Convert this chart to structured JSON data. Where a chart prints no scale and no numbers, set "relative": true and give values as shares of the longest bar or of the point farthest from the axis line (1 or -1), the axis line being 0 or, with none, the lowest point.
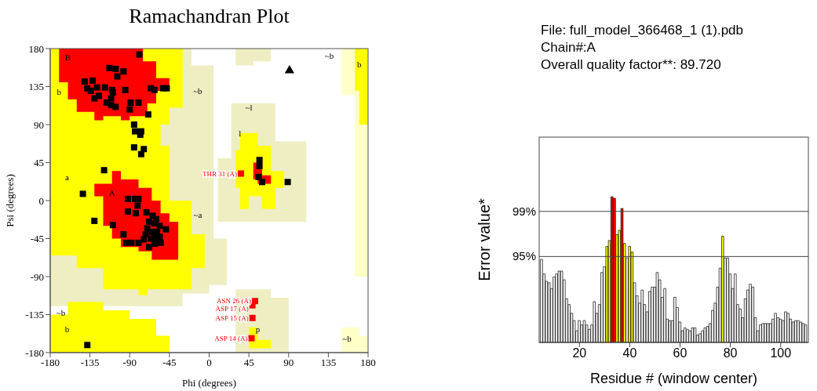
{
  "chart_data": [
    {
      "type": "scatter",
      "title": "Ramachandran Plot",
      "xlabel": "Phi (degrees)",
      "ylabel": "Psi (degrees)",
      "xlim": [
        -180,
        180
      ],
      "ylim": [
        -180,
        180
      ],
      "xticks": [
        -180,
        -135,
        -90,
        -45,
        0,
        45,
        90,
        135,
        180
      ],
      "yticks": [
        -180,
        -135,
        -90,
        -45,
        0,
        45,
        90,
        135,
        180
      ],
      "series": [
        {
          "color": "#000000",
          "marker": "square",
          "x": [
            -79,
            -113,
            -106,
            -97,
            -104,
            -141,
            -132,
            -138,
            -134,
            -127,
            -118,
            -110,
            -109,
            -95,
            -66,
            -62,
            -52,
            -48,
            -130,
            -125,
            -111,
            -116,
            -111,
            -106,
            -89,
            -80,
            -90,
            -69,
            -85,
            -84,
            -77,
            -78,
            -85,
            -74,
            -77,
            -119,
            57,
            57,
            56,
            60,
            89,
            -143,
            -130,
            -109,
            -97,
            -94,
            -88,
            -80,
            -68,
            -92,
            -84,
            -80,
            -81,
            -92,
            -83,
            -71,
            -64,
            -60,
            -68,
            -62,
            -56,
            -49,
            -70,
            -65,
            -59,
            -72,
            -62,
            -56,
            -66,
            -60,
            -55,
            -74,
            -62,
            -138
          ],
          "values": [
            173,
            157,
            156,
            153,
            147,
            141,
            142,
            133,
            130,
            134,
            134,
            131,
            128,
            131,
            133,
            131,
            133,
            133,
            121,
            124,
            121,
            116,
            113,
            111,
            116,
            116,
            108,
            102,
            90,
            82,
            82,
            78,
            63,
            61,
            55,
            36,
            48,
            41,
            28,
            22,
            22,
            8,
            -24,
            -29,
            -40,
            -50,
            -50,
            -50,
            -55,
            2,
            2,
            2,
            -6,
            -13,
            -15,
            -14,
            -18,
            -22,
            -25,
            -27,
            -30,
            -34,
            -33,
            -37,
            -37,
            -40,
            -41,
            -43,
            -45,
            -48,
            -50,
            -46,
            -51,
            -171
          ]
        },
        {
          "color": "#000000",
          "marker": "triangle",
          "x": [
            91
          ],
          "values": [
            154
          ]
        },
        {
          "color": "#ff0000",
          "marker": "square",
          "x": [
            36,
            52,
            49,
            49,
            48
          ],
          "values": [
            32,
            -119,
            -124,
            -139,
            -163
          ]
        }
      ],
      "annotations": [
        {
          "text": "THR 31 (A)",
          "x": 36,
          "y": 32
        },
        {
          "text": "ASN 26 (A)",
          "x": 52,
          "y": -119
        },
        {
          "text": "ASP 17 (A)",
          "x": 49,
          "y": -124
        },
        {
          "text": "ASP 15 (A)",
          "x": 49,
          "y": -139
        },
        {
          "text": "ASP 14 (A)",
          "x": 48,
          "y": -163
        },
        "B",
        "b",
        "~b",
        "~l",
        "l",
        "a",
        "~b",
        "b",
        "A",
        "~a",
        "~b",
        "b",
        "p",
        "~b"
      ]
    },
    {
      "type": "bar",
      "xlabel": "Residue # (window center)",
      "ylabel": "Error value*",
      "xlim": [
        4,
        111
      ],
      "xticks": [
        20,
        40,
        60,
        80,
        100
      ],
      "relative": true,
      "ref_lines": [
        {
          "axis": "y",
          "value": 0.59,
          "color": "#444444"
        },
        {
          "axis": "y",
          "value": 0.9,
          "color": "#444444"
        }
      ],
      "annotations": [
        "File: full_model_366468_1 (1).pdb",
        "Chain#:A",
        "Overall quality factor**: 89.720",
        "95%",
        "99%"
      ],
      "x": [
        5,
        6,
        7,
        8,
        9,
        10,
        11,
        12,
        13,
        14,
        15,
        16,
        17,
        18,
        19,
        20,
        21,
        22,
        23,
        24,
        25,
        26,
        27,
        28,
        29,
        30,
        31,
        32,
        33,
        34,
        35,
        36,
        37,
        38,
        39,
        40,
        41,
        42,
        43,
        44,
        45,
        46,
        47,
        48,
        49,
        50,
        51,
        52,
        53,
        54,
        55,
        56,
        57,
        58,
        59,
        60,
        61,
        62,
        63,
        64,
        65,
        66,
        67,
        68,
        69,
        70,
        71,
        72,
        73,
        74,
        75,
        76,
        77,
        78,
        79,
        80,
        81,
        82,
        83,
        84,
        85,
        86,
        87,
        88,
        89,
        90,
        91,
        92,
        93,
        94,
        95,
        96,
        97,
        98,
        99,
        100,
        101,
        102,
        103,
        104,
        105,
        106,
        107,
        108,
        109,
        110
      ],
      "values": [
        0.57,
        0.47,
        0.42,
        0.41,
        0.37,
        0.45,
        0.47,
        0.49,
        0.49,
        0.43,
        0.3,
        0.26,
        0.2,
        0.15,
        0.08,
        0.15,
        0.12,
        0.15,
        0.12,
        0.09,
        0.12,
        0.28,
        0.2,
        0.26,
        0.48,
        0.52,
        0.66,
        0.7,
        1,
        0.99,
        0.74,
        0.77,
        0.92,
        0.68,
        0.58,
        0.66,
        0.62,
        0.41,
        0.32,
        0.27,
        0.36,
        0.26,
        0.21,
        0.35,
        0.38,
        0.38,
        0.48,
        0.43,
        0.31,
        0.37,
        0.16,
        0.15,
        0.15,
        0.31,
        0.24,
        0.14,
        0.08,
        0.1,
        0.09,
        0.08,
        0.1,
        0.1,
        0.05,
        0.06,
        0.08,
        0.1,
        0.11,
        0.13,
        0.22,
        0.27,
        0.38,
        0.51,
        0.73,
        0.58,
        0.58,
        0.47,
        0.37,
        0.47,
        0.26,
        0.23,
        0.17,
        0.3,
        0.36,
        0.4,
        0.38,
        0.17,
        0.08,
        0.12,
        0.13,
        0.13,
        0.13,
        0.13,
        0.16,
        0.2,
        0.17,
        0.16,
        0.15,
        0.21,
        0.2,
        0.16,
        0.14,
        0.15,
        0.15,
        0.14,
        0.13,
        0.12
      ],
      "colors": [
        "#ffffff",
        "#ffffff",
        "#ffffff",
        "#ffffff",
        "#ffffff",
        "#ffffff",
        "#ffffff",
        "#ffffff",
        "#ffffff",
        "#ffffff",
        "#ffffff",
        "#ffffff",
        "#ffffff",
        "#ffffff",
        "#ffffff",
        "#ffffff",
        "#ffffff",
        "#ffffff",
        "#ffffff",
        "#ffffff",
        "#ffffff",
        "#ffffff",
        "#ffffff",
        "#ffffff",
        "#ffffff",
        "#ffffff",
        "#ffff00",
        "#ffff00",
        "#ff0000",
        "#ff0000",
        "#ffff00",
        "#ffff00",
        "#ff0000",
        "#ffff00",
        "#ffffff",
        "#ffff00",
        "#ffff00",
        "#ffffff",
        "#ffffff",
        "#ffffff",
        "#ffffff",
        "#ffffff",
        "#ffffff",
        "#ffffff",
        "#ffffff",
        "#ffffff",
        "#ffffff",
        "#ffffff",
        "#ffffff",
        "#ffffff",
        "#ffffff",
        "#ffffff",
        "#ffffff",
        "#ffffff",
        "#ffffff",
        "#ffffff",
        "#ffffff",
        "#ffffff",
        "#ffffff",
        "#ffffff",
        "#ffffff",
        "#ffffff",
        "#ffffff",
        "#ffffff",
        "#ffffff",
        "#ffffff",
        "#ffffff",
        "#ffffff",
        "#ffffff",
        "#ffffff",
        "#ffffff",
        "#ffffff",
        "#ffff00",
        "#ffffff",
        "#ffffff",
        "#ffffff",
        "#ffffff",
        "#ffffff",
        "#ffffff",
        "#ffffff",
        "#ffffff",
        "#ffffff",
        "#ffffff",
        "#ffffff",
        "#ffffff",
        "#ffffff",
        "#ffffff",
        "#ffffff",
        "#ffffff",
        "#ffffff",
        "#ffffff",
        "#ffffff",
        "#ffffff",
        "#ffffff",
        "#ffffff",
        "#ffffff",
        "#ffffff",
        "#ffffff",
        "#ffffff",
        "#ffffff",
        "#ffffff",
        "#ffffff",
        "#ffffff",
        "#ffffff",
        "#ffffff",
        "#ffffff"
      ]
    }
  ]
}
